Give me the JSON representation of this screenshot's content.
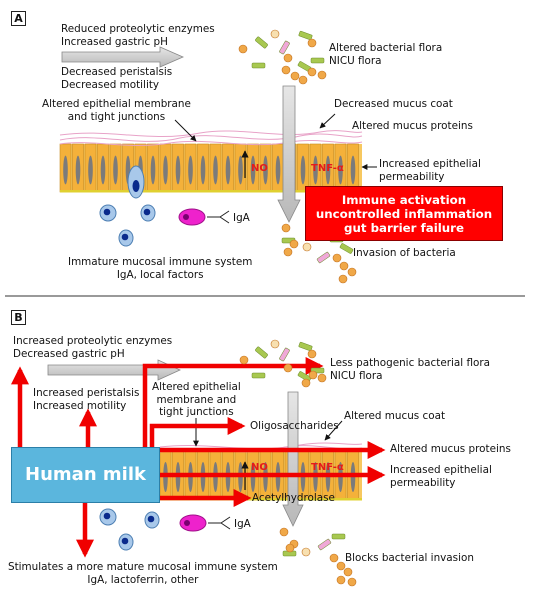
{
  "panel_a": {
    "tag": "A",
    "enzymes": [
      "Reduced proteolytic enzymes",
      "Increased gastric pH"
    ],
    "motility": [
      "Decreased peristalsis",
      "Decreased motility"
    ],
    "flora": [
      "Altered bacterial flora",
      "NICU flora"
    ],
    "membrane": [
      "Altered epithelial membrane",
      "and tight junctions"
    ],
    "mucus_coat": "Decreased mucus coat",
    "mucus_proteins": "Altered mucus proteins",
    "no": "NO",
    "tnf": "TNF-α",
    "permeability": [
      "Increased epithelial",
      "permeability"
    ],
    "iga": "IgA",
    "immune_system": [
      "Immature mucosal immune system",
      "IgA, local factors"
    ],
    "invasion": "Invasion of bacteria",
    "activation": [
      "Immune activation",
      "uncontrolled inflammation",
      "gut barrier failure"
    ]
  },
  "panel_b": {
    "tag": "B",
    "enzymes": [
      "Increased proteolytic enzymes",
      "Decreased gastric pH"
    ],
    "motility": [
      "Increased peristalsis",
      "Increased motility"
    ],
    "flora": [
      "Less pathogenic bacterial flora",
      "NICU flora"
    ],
    "membrane": [
      "Altered epithelial",
      "membrane and",
      "tight junctions"
    ],
    "mucus_coat": "Altered mucus coat",
    "oligosaccharides": "Oligosaccharides",
    "mucus_proteins": "Altered mucus proteins",
    "permeability": [
      "Increased epithelial",
      "permeability"
    ],
    "no": "NO",
    "tnf": "TNF-α",
    "acetylhydrolase": "Acetylhydrolase",
    "human_milk": "Human milk",
    "iga": "IgA",
    "immune_system": [
      "Stimulates a more mature mucosal immune system",
      "IgA, lactoferrin, other"
    ],
    "invasion": "Blocks bacterial invasion"
  },
  "colors": {
    "arrow_red": "#f00000",
    "epithelium": "#f4b13a",
    "human_milk": "#5bb6dd",
    "activation_box": "#ff0000",
    "mucus": "#e8a3c8"
  }
}
